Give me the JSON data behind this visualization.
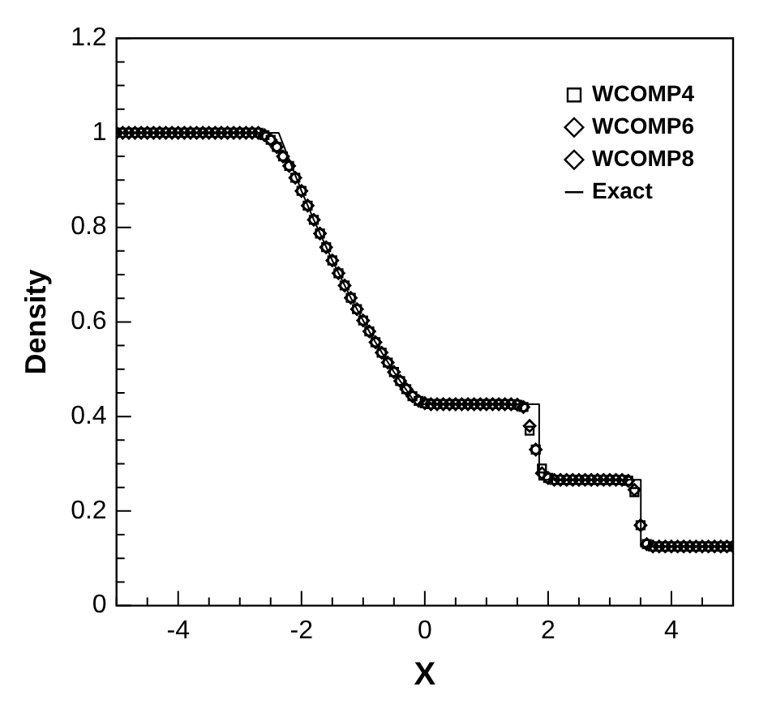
{
  "chart_data": {
    "type": "scatter",
    "xlabel": "X",
    "ylabel": "Density",
    "x": [
      -5,
      -4.9,
      -4.8,
      -4.7,
      -4.6,
      -4.5,
      -4.4,
      -4.3,
      -4.2,
      -4.1,
      -4,
      -3.9,
      -3.8,
      -3.7,
      -3.6,
      -3.5,
      -3.4,
      -3.3,
      -3.2,
      -3.1,
      -3,
      -2.9,
      -2.8,
      -2.7,
      -2.6,
      -2.5,
      -2.4,
      -2.3,
      -2.2,
      -2.1,
      -2,
      -1.9,
      -1.8,
      -1.7,
      -1.6,
      -1.5,
      -1.4,
      -1.3,
      -1.2,
      -1.1,
      -1,
      -0.9,
      -0.8,
      -0.7,
      -0.6,
      -0.5,
      -0.4,
      -0.3,
      -0.2,
      -0.1,
      0,
      0.1,
      0.2,
      0.3,
      0.4,
      0.5,
      0.6,
      0.7,
      0.8,
      0.9,
      1,
      1.1,
      1.2,
      1.3,
      1.4,
      1.5,
      1.6,
      1.7,
      1.8,
      1.9,
      2,
      2.1,
      2.2,
      2.3,
      2.4,
      2.5,
      2.6,
      2.7,
      2.8,
      2.9,
      3,
      3.1,
      3.2,
      3.3,
      3.4,
      3.5,
      3.6,
      3.7,
      3.8,
      3.9,
      4,
      4.1,
      4.2,
      4.3,
      4.4,
      4.5,
      4.6,
      4.7,
      4.8,
      4.9,
      5
    ],
    "series": [
      {
        "name": "WCOMP4",
        "color": "#000000",
        "marker": "square",
        "values": [
          1,
          1,
          1,
          1,
          1,
          1,
          1,
          1,
          1,
          1,
          1,
          1,
          1,
          1,
          1,
          1,
          1,
          1,
          1,
          1,
          1,
          1,
          1,
          1,
          0.995,
          0.985,
          0.97,
          0.95,
          0.93,
          0.905,
          0.877,
          0.846,
          0.816,
          0.787,
          0.758,
          0.73,
          0.703,
          0.677,
          0.651,
          0.627,
          0.603,
          0.58,
          0.557,
          0.535,
          0.514,
          0.494,
          0.475,
          0.458,
          0.443,
          0.433,
          0.428,
          0.426,
          0.426,
          0.426,
          0.426,
          0.426,
          0.426,
          0.426,
          0.426,
          0.426,
          0.426,
          0.426,
          0.426,
          0.426,
          0.426,
          0.425,
          0.42,
          0.37,
          0.33,
          0.29,
          0.27,
          0.266,
          0.266,
          0.266,
          0.266,
          0.266,
          0.266,
          0.266,
          0.266,
          0.266,
          0.266,
          0.266,
          0.266,
          0.264,
          0.24,
          0.17,
          0.13,
          0.125,
          0.125,
          0.125,
          0.125,
          0.125,
          0.125,
          0.125,
          0.125,
          0.125,
          0.125,
          0.125,
          0.125,
          0.125,
          0.125
        ]
      },
      {
        "name": "WCOMP6",
        "color": "#000000",
        "marker": "diamond",
        "values": [
          1,
          1,
          1,
          1,
          1,
          1,
          1,
          1,
          1,
          1,
          1,
          1,
          1,
          1,
          1,
          1,
          1,
          1,
          1,
          1,
          1,
          1,
          1,
          1,
          0.995,
          0.985,
          0.97,
          0.95,
          0.93,
          0.905,
          0.877,
          0.846,
          0.816,
          0.787,
          0.758,
          0.73,
          0.703,
          0.677,
          0.651,
          0.627,
          0.603,
          0.58,
          0.557,
          0.535,
          0.514,
          0.494,
          0.475,
          0.458,
          0.443,
          0.433,
          0.428,
          0.426,
          0.426,
          0.426,
          0.426,
          0.426,
          0.426,
          0.426,
          0.426,
          0.426,
          0.426,
          0.426,
          0.426,
          0.426,
          0.426,
          0.425,
          0.42,
          0.38,
          0.33,
          0.28,
          0.27,
          0.266,
          0.266,
          0.266,
          0.266,
          0.266,
          0.266,
          0.266,
          0.266,
          0.266,
          0.266,
          0.266,
          0.266,
          0.264,
          0.245,
          0.17,
          0.13,
          0.125,
          0.125,
          0.125,
          0.125,
          0.125,
          0.125,
          0.125,
          0.125,
          0.125,
          0.125,
          0.125,
          0.125,
          0.125,
          0.125
        ]
      },
      {
        "name": "WCOMP8",
        "color": "#000000",
        "marker": "diamond",
        "values": [
          1,
          1,
          1,
          1,
          1,
          1,
          1,
          1,
          1,
          1,
          1,
          1,
          1,
          1,
          1,
          1,
          1,
          1,
          1,
          1,
          1,
          1,
          1,
          1,
          0.995,
          0.985,
          0.97,
          0.95,
          0.93,
          0.905,
          0.877,
          0.846,
          0.816,
          0.787,
          0.758,
          0.73,
          0.703,
          0.677,
          0.651,
          0.627,
          0.603,
          0.58,
          0.557,
          0.535,
          0.514,
          0.494,
          0.475,
          0.458,
          0.443,
          0.433,
          0.428,
          0.426,
          0.426,
          0.426,
          0.426,
          0.426,
          0.426,
          0.426,
          0.426,
          0.426,
          0.426,
          0.426,
          0.426,
          0.426,
          0.426,
          0.425,
          0.42,
          0.38,
          0.33,
          0.28,
          0.27,
          0.266,
          0.266,
          0.266,
          0.266,
          0.266,
          0.266,
          0.266,
          0.266,
          0.266,
          0.266,
          0.266,
          0.266,
          0.264,
          0.245,
          0.17,
          0.13,
          0.125,
          0.125,
          0.125,
          0.125,
          0.125,
          0.125,
          0.125,
          0.125,
          0.125,
          0.125,
          0.125,
          0.125,
          0.125,
          0.125
        ]
      },
      {
        "name": "Exact",
        "color": "#000000",
        "type": "line",
        "marker": "none",
        "line_style": "solid",
        "x": [
          -5,
          -2.37,
          -2.2,
          -2,
          -1.8,
          -1.5,
          -1.2,
          -1,
          -0.8,
          -0.5,
          -0.14,
          1.855,
          1.855,
          3.504,
          3.504,
          5
        ],
        "values": [
          1,
          1,
          0.943,
          0.877,
          0.816,
          0.73,
          0.651,
          0.603,
          0.557,
          0.494,
          0.426,
          0.426,
          0.266,
          0.266,
          0.125,
          0.125
        ]
      }
    ],
    "xlim": [
      -5,
      5
    ],
    "xticks": [
      {
        "value": -5,
        "label": null
      },
      {
        "value": -4.5,
        "label": null
      },
      -4,
      {
        "value": -3.5,
        "label": null
      },
      {
        "value": -3,
        "label": null
      },
      {
        "value": -2.5,
        "label": null
      },
      -2,
      {
        "value": -1.5,
        "label": null
      },
      {
        "value": -1,
        "label": null
      },
      {
        "value": -0.5,
        "label": null
      },
      0,
      {
        "value": 0.5,
        "label": null
      },
      {
        "value": 1,
        "label": null
      },
      {
        "value": 1.5,
        "label": null
      },
      2,
      {
        "value": 2.5,
        "label": null
      },
      {
        "value": 3,
        "label": null
      },
      {
        "value": 3.5,
        "label": null
      },
      4,
      {
        "value": 4.5,
        "label": null
      },
      {
        "value": 5,
        "label": null
      }
    ],
    "ylim": [
      0,
      1.2
    ],
    "yticks": [
      0,
      {
        "value": 0.05,
        "label": null
      },
      {
        "value": 0.1,
        "label": null
      },
      {
        "value": 0.15,
        "label": null
      },
      0.2,
      {
        "value": 0.25,
        "label": null
      },
      {
        "value": 0.3,
        "label": null
      },
      {
        "value": 0.35,
        "label": null
      },
      0.4,
      {
        "value": 0.45,
        "label": null
      },
      {
        "value": 0.5,
        "label": null
      },
      {
        "value": 0.55,
        "label": null
      },
      0.6,
      {
        "value": 0.65,
        "label": null
      },
      {
        "value": 0.7,
        "label": null
      },
      {
        "value": 0.75,
        "label": null
      },
      0.8,
      {
        "value": 0.85,
        "label": null
      },
      {
        "value": 0.9,
        "label": null
      },
      {
        "value": 0.95,
        "label": null
      },
      1,
      {
        "value": 1.05,
        "label": null
      },
      {
        "value": 1.1,
        "label": null
      },
      {
        "value": 1.15,
        "label": null
      },
      1.2
    ],
    "grid": false,
    "legend": "top right"
  }
}
